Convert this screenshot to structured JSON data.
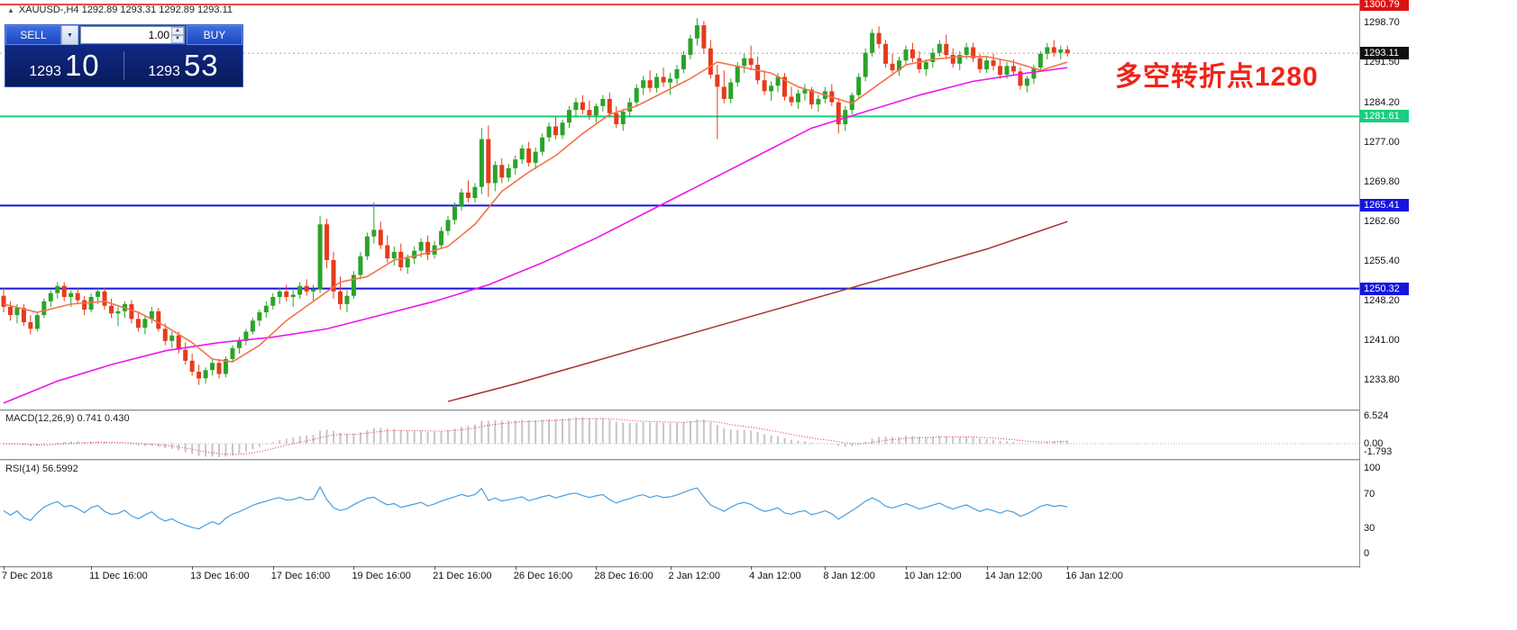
{
  "header": {
    "symbol_line": "XAUUSD-,H4   1292.89 1293.31 1292.89 1293.11"
  },
  "icons": {
    "symbol_marker": "▲",
    "dropdown_arrow": "▼",
    "spinner_up": "▲",
    "spinner_down": "▼"
  },
  "trade_panel": {
    "sell_label": "SELL",
    "buy_label": "BUY",
    "volume": "1.00",
    "bid_big": "1293",
    "bid_pips": "10",
    "ask_big": "1293",
    "ask_pips": "53"
  },
  "annotation": {
    "text": "多空转折点1280",
    "color": "#f02318"
  },
  "indicators": {
    "macd_label": "MACD(12,26,9) 0.741 0.430",
    "rsi_label": "RSI(14) 56.5992"
  },
  "axes": {
    "price_labels": [
      "1298.70",
      "1291.50",
      "1284.20",
      "1277.00",
      "1269.80",
      "1262.60",
      "1255.40",
      "1248.20",
      "1241.00",
      "1233.80"
    ],
    "macd_labels": [
      "6.524",
      "0.00",
      "-1.793"
    ],
    "rsi_labels": [
      "100",
      "70",
      "30",
      "0"
    ],
    "time_labels": [
      {
        "i": 0,
        "label": "7 Dec 2018"
      },
      {
        "i": 13,
        "label": "11 Dec 16:00"
      },
      {
        "i": 28,
        "label": "13 Dec 16:00"
      },
      {
        "i": 40,
        "label": "17 Dec 16:00"
      },
      {
        "i": 52,
        "label": "19 Dec 16:00"
      },
      {
        "i": 64,
        "label": "21 Dec 16:00"
      },
      {
        "i": 76,
        "label": "26 Dec 16:00"
      },
      {
        "i": 88,
        "label": "28 Dec 16:00"
      },
      {
        "i": 99,
        "label": "2 Jan 12:00"
      },
      {
        "i": 111,
        "label": "4 Jan 12:00"
      },
      {
        "i": 122,
        "label": "8 Jan 12:00"
      },
      {
        "i": 134,
        "label": "10 Jan 12:00"
      },
      {
        "i": 146,
        "label": "14 Jan 12:00"
      },
      {
        "i": 158,
        "label": "16 Jan 12:00"
      }
    ]
  },
  "levels": [
    {
      "price": 1300.79,
      "label": "1300.79",
      "color": "#dd1111",
      "width": 1.5,
      "pin_top": true
    },
    {
      "price": 1281.61,
      "label": "1281.61",
      "color": "#17cf7e",
      "width": 2,
      "pin_top": false
    },
    {
      "price": 1265.41,
      "label": "1265.41",
      "color": "#1515dd",
      "width": 2,
      "pin_top": false
    },
    {
      "price": 1250.32,
      "label": "1250.32",
      "color": "#1515dd",
      "width": 2,
      "pin_top": false
    }
  ],
  "current_price": {
    "value": "1293.11",
    "price": 1293.11,
    "badge_color": "#101010"
  },
  "colors": {
    "candle_up": "#2aa32a",
    "candle_down": "#e53b1c",
    "ma_fast": "#f4734a",
    "ma_mid": "#ee16ee",
    "ma_slow": "#a8312a",
    "macd_hist": "#c6c6c6",
    "macd_signal": "#e03030",
    "rsi_line": "#4a9ede"
  },
  "chart_data": {
    "type": "candlestick",
    "symbol": "XAUUSD-",
    "timeframe": "H4",
    "ohlc_current": {
      "open": 1292.89,
      "high": 1293.31,
      "low": 1292.89,
      "close": 1293.11
    },
    "ylim": [
      1229,
      1302
    ],
    "candles": [
      [
        1249.0,
        1250.5,
        1246.0,
        1247.0
      ],
      [
        1247.0,
        1248.0,
        1244.5,
        1245.5
      ],
      [
        1245.5,
        1247.5,
        1244.0,
        1246.8
      ],
      [
        1246.8,
        1247.5,
        1243.5,
        1244.2
      ],
      [
        1244.2,
        1245.5,
        1242.0,
        1243.0
      ],
      [
        1243.0,
        1246.0,
        1242.5,
        1245.5
      ],
      [
        1245.5,
        1248.5,
        1245.0,
        1248.0
      ],
      [
        1248.0,
        1250.0,
        1247.0,
        1249.5
      ],
      [
        1249.5,
        1251.5,
        1248.5,
        1250.8
      ],
      [
        1250.8,
        1251.5,
        1248.0,
        1248.8
      ],
      [
        1248.8,
        1250.0,
        1247.0,
        1249.5
      ],
      [
        1249.5,
        1250.5,
        1247.5,
        1248.2
      ],
      [
        1248.2,
        1249.0,
        1245.5,
        1246.5
      ],
      [
        1246.5,
        1249.5,
        1246.0,
        1248.8
      ],
      [
        1248.8,
        1250.5,
        1247.5,
        1249.8
      ],
      [
        1249.8,
        1250.5,
        1246.5,
        1247.2
      ],
      [
        1247.2,
        1248.5,
        1245.0,
        1245.8
      ],
      [
        1245.8,
        1247.0,
        1243.5,
        1246.2
      ],
      [
        1246.2,
        1248.0,
        1245.0,
        1247.5
      ],
      [
        1247.5,
        1248.2,
        1244.0,
        1244.8
      ],
      [
        1244.8,
        1246.0,
        1242.5,
        1243.2
      ],
      [
        1243.2,
        1245.5,
        1242.0,
        1244.8
      ],
      [
        1244.8,
        1247.0,
        1244.0,
        1246.2
      ],
      [
        1246.2,
        1246.8,
        1242.5,
        1243.0
      ],
      [
        1243.0,
        1244.0,
        1240.0,
        1240.8
      ],
      [
        1240.8,
        1242.5,
        1239.5,
        1241.8
      ],
      [
        1241.8,
        1242.5,
        1238.5,
        1239.2
      ],
      [
        1239.2,
        1240.5,
        1236.5,
        1237.2
      ],
      [
        1237.2,
        1238.5,
        1234.5,
        1235.2
      ],
      [
        1235.2,
        1236.5,
        1232.8,
        1234.0
      ],
      [
        1234.0,
        1236.0,
        1233.0,
        1235.5
      ],
      [
        1235.5,
        1237.5,
        1234.5,
        1236.8
      ],
      [
        1236.8,
        1237.5,
        1234.0,
        1234.8
      ],
      [
        1234.8,
        1238.0,
        1234.2,
        1237.5
      ],
      [
        1237.5,
        1240.0,
        1237.0,
        1239.5
      ],
      [
        1239.5,
        1241.5,
        1238.5,
        1240.8
      ],
      [
        1240.8,
        1243.0,
        1240.0,
        1242.5
      ],
      [
        1242.5,
        1245.0,
        1242.0,
        1244.5
      ],
      [
        1244.5,
        1246.5,
        1243.5,
        1246.0
      ],
      [
        1246.0,
        1248.0,
        1245.0,
        1247.2
      ],
      [
        1247.2,
        1249.5,
        1246.5,
        1248.8
      ],
      [
        1248.8,
        1250.5,
        1247.5,
        1249.8
      ],
      [
        1249.8,
        1251.0,
        1248.0,
        1248.8
      ],
      [
        1248.8,
        1250.0,
        1247.0,
        1249.2
      ],
      [
        1249.2,
        1251.5,
        1248.5,
        1250.8
      ],
      [
        1250.8,
        1252.0,
        1249.0,
        1249.8
      ],
      [
        1249.8,
        1251.0,
        1248.0,
        1250.2
      ],
      [
        1250.2,
        1263.5,
        1249.5,
        1262.0
      ],
      [
        1262.0,
        1263.0,
        1254.0,
        1255.5
      ],
      [
        1255.5,
        1257.0,
        1248.5,
        1249.8
      ],
      [
        1249.8,
        1252.5,
        1246.5,
        1247.5
      ],
      [
        1247.5,
        1250.0,
        1246.0,
        1249.0
      ],
      [
        1249.0,
        1253.5,
        1248.5,
        1252.8
      ],
      [
        1252.8,
        1257.0,
        1252.0,
        1256.2
      ],
      [
        1256.2,
        1260.5,
        1255.5,
        1259.8
      ],
      [
        1259.8,
        1266.0,
        1258.5,
        1261.0
      ],
      [
        1261.0,
        1262.5,
        1257.5,
        1258.2
      ],
      [
        1258.2,
        1260.0,
        1255.0,
        1255.8
      ],
      [
        1255.8,
        1258.0,
        1254.5,
        1257.0
      ],
      [
        1257.0,
        1258.5,
        1253.5,
        1254.2
      ],
      [
        1254.2,
        1256.5,
        1253.0,
        1255.8
      ],
      [
        1255.8,
        1258.0,
        1254.8,
        1257.2
      ],
      [
        1257.2,
        1259.5,
        1256.0,
        1258.8
      ],
      [
        1258.8,
        1260.0,
        1255.5,
        1256.5
      ],
      [
        1256.5,
        1259.0,
        1255.8,
        1258.2
      ],
      [
        1258.2,
        1261.5,
        1257.5,
        1260.8
      ],
      [
        1260.8,
        1263.5,
        1260.0,
        1262.8
      ],
      [
        1262.8,
        1266.0,
        1262.0,
        1265.2
      ],
      [
        1265.2,
        1268.5,
        1264.5,
        1267.8
      ],
      [
        1267.8,
        1270.0,
        1266.0,
        1266.8
      ],
      [
        1266.8,
        1269.5,
        1266.0,
        1268.8
      ],
      [
        1268.8,
        1279.5,
        1267.5,
        1277.5
      ],
      [
        1277.5,
        1280.0,
        1267.0,
        1269.5
      ],
      [
        1269.5,
        1273.5,
        1268.0,
        1272.8
      ],
      [
        1272.8,
        1274.0,
        1269.5,
        1270.5
      ],
      [
        1270.5,
        1273.0,
        1269.8,
        1272.2
      ],
      [
        1272.2,
        1274.5,
        1271.0,
        1273.8
      ],
      [
        1273.8,
        1276.5,
        1273.0,
        1275.8
      ],
      [
        1275.8,
        1277.0,
        1272.5,
        1273.2
      ],
      [
        1273.2,
        1276.0,
        1272.0,
        1275.2
      ],
      [
        1275.2,
        1278.5,
        1274.5,
        1277.8
      ],
      [
        1277.8,
        1280.5,
        1277.0,
        1279.8
      ],
      [
        1279.8,
        1281.5,
        1277.5,
        1278.2
      ],
      [
        1278.2,
        1281.0,
        1277.5,
        1280.5
      ],
      [
        1280.5,
        1283.5,
        1279.5,
        1282.8
      ],
      [
        1282.8,
        1285.0,
        1281.5,
        1284.2
      ],
      [
        1284.2,
        1285.5,
        1282.0,
        1282.8
      ],
      [
        1282.8,
        1284.5,
        1281.0,
        1281.8
      ],
      [
        1281.8,
        1284.0,
        1280.5,
        1283.5
      ],
      [
        1283.5,
        1285.5,
        1282.5,
        1284.8
      ],
      [
        1284.8,
        1286.0,
        1281.5,
        1282.2
      ],
      [
        1282.2,
        1283.5,
        1279.5,
        1280.2
      ],
      [
        1280.2,
        1283.0,
        1279.0,
        1282.5
      ],
      [
        1282.5,
        1285.0,
        1281.5,
        1284.2
      ],
      [
        1284.2,
        1287.5,
        1283.5,
        1286.8
      ],
      [
        1286.8,
        1289.0,
        1285.5,
        1288.2
      ],
      [
        1288.2,
        1290.0,
        1286.0,
        1286.8
      ],
      [
        1286.8,
        1289.5,
        1286.0,
        1288.8
      ],
      [
        1288.8,
        1290.5,
        1287.0,
        1287.8
      ],
      [
        1287.8,
        1289.5,
        1285.5,
        1288.5
      ],
      [
        1288.5,
        1291.0,
        1287.5,
        1290.2
      ],
      [
        1290.2,
        1293.5,
        1289.5,
        1292.8
      ],
      [
        1292.8,
        1296.5,
        1292.0,
        1295.8
      ],
      [
        1295.8,
        1299.5,
        1294.5,
        1298.2
      ],
      [
        1298.2,
        1299.0,
        1293.0,
        1294.0
      ],
      [
        1294.0,
        1295.5,
        1288.5,
        1289.2
      ],
      [
        1289.2,
        1291.0,
        1277.5,
        1287.0
      ],
      [
        1287.0,
        1290.0,
        1284.0,
        1284.8
      ],
      [
        1284.8,
        1288.5,
        1284.0,
        1287.8
      ],
      [
        1287.8,
        1291.5,
        1287.0,
        1290.8
      ],
      [
        1290.8,
        1293.0,
        1289.5,
        1292.2
      ],
      [
        1292.2,
        1294.5,
        1290.0,
        1291.0
      ],
      [
        1291.0,
        1292.5,
        1287.5,
        1288.2
      ],
      [
        1288.2,
        1290.0,
        1285.5,
        1286.2
      ],
      [
        1286.2,
        1288.0,
        1284.5,
        1287.2
      ],
      [
        1287.2,
        1289.5,
        1286.0,
        1288.8
      ],
      [
        1288.8,
        1289.5,
        1284.5,
        1285.2
      ],
      [
        1285.2,
        1287.0,
        1283.5,
        1284.2
      ],
      [
        1284.2,
        1286.5,
        1283.0,
        1285.8
      ],
      [
        1285.8,
        1287.5,
        1284.5,
        1286.5
      ],
      [
        1286.5,
        1287.0,
        1283.0,
        1283.8
      ],
      [
        1283.8,
        1285.5,
        1282.5,
        1284.8
      ],
      [
        1284.8,
        1287.0,
        1284.0,
        1286.2
      ],
      [
        1286.2,
        1287.5,
        1283.5,
        1284.2
      ],
      [
        1284.2,
        1285.0,
        1278.5,
        1280.2
      ],
      [
        1280.2,
        1283.5,
        1279.0,
        1282.8
      ],
      [
        1282.8,
        1286.0,
        1282.0,
        1285.5
      ],
      [
        1285.5,
        1289.5,
        1285.0,
        1288.8
      ],
      [
        1288.8,
        1294.0,
        1288.0,
        1293.2
      ],
      [
        1293.2,
        1297.5,
        1292.5,
        1296.8
      ],
      [
        1296.8,
        1298.0,
        1294.0,
        1294.8
      ],
      [
        1294.8,
        1295.5,
        1290.5,
        1291.2
      ],
      [
        1291.2,
        1293.0,
        1289.5,
        1290.0
      ],
      [
        1290.0,
        1292.5,
        1289.0,
        1291.8
      ],
      [
        1291.8,
        1294.5,
        1291.0,
        1293.8
      ],
      [
        1293.8,
        1295.0,
        1291.5,
        1292.2
      ],
      [
        1292.2,
        1293.5,
        1289.5,
        1290.2
      ],
      [
        1290.2,
        1292.0,
        1289.0,
        1291.5
      ],
      [
        1291.5,
        1294.0,
        1290.5,
        1293.2
      ],
      [
        1293.2,
        1295.5,
        1292.5,
        1294.8
      ],
      [
        1294.8,
        1296.5,
        1292.0,
        1292.8
      ],
      [
        1292.8,
        1294.0,
        1290.5,
        1291.2
      ],
      [
        1291.2,
        1293.5,
        1290.0,
        1292.8
      ],
      [
        1292.8,
        1295.0,
        1292.0,
        1294.2
      ],
      [
        1294.2,
        1295.0,
        1291.5,
        1292.2
      ],
      [
        1292.2,
        1293.0,
        1289.5,
        1290.2
      ],
      [
        1290.2,
        1292.5,
        1289.5,
        1291.8
      ],
      [
        1291.8,
        1293.0,
        1290.0,
        1290.8
      ],
      [
        1290.8,
        1292.0,
        1288.5,
        1289.2
      ],
      [
        1289.2,
        1291.5,
        1288.5,
        1290.8
      ],
      [
        1290.8,
        1292.0,
        1289.0,
        1289.8
      ],
      [
        1289.8,
        1290.5,
        1286.5,
        1287.2
      ],
      [
        1287.2,
        1289.0,
        1286.0,
        1288.5
      ],
      [
        1288.5,
        1291.0,
        1287.5,
        1290.5
      ],
      [
        1290.5,
        1293.5,
        1290.0,
        1293.0
      ],
      [
        1293.0,
        1295.0,
        1292.0,
        1294.2
      ],
      [
        1294.2,
        1295.5,
        1292.5,
        1293.2
      ],
      [
        1293.2,
        1294.5,
        1292.0,
        1293.8
      ],
      [
        1293.8,
        1294.5,
        1292.5,
        1293.1
      ]
    ],
    "ma_fast_points": [
      [
        0,
        1247.5
      ],
      [
        5,
        1246.0
      ],
      [
        10,
        1247.5
      ],
      [
        15,
        1248.0
      ],
      [
        20,
        1246.0
      ],
      [
        24,
        1243.5
      ],
      [
        28,
        1240.5
      ],
      [
        31,
        1237.5
      ],
      [
        34,
        1237.0
      ],
      [
        38,
        1240.0
      ],
      [
        42,
        1244.5
      ],
      [
        46,
        1248.0
      ],
      [
        50,
        1251.5
      ],
      [
        54,
        1252.5
      ],
      [
        58,
        1255.5
      ],
      [
        62,
        1256.5
      ],
      [
        66,
        1258.0
      ],
      [
        70,
        1262.0
      ],
      [
        74,
        1268.0
      ],
      [
        78,
        1271.5
      ],
      [
        82,
        1274.5
      ],
      [
        86,
        1278.5
      ],
      [
        90,
        1282.0
      ],
      [
        94,
        1283.5
      ],
      [
        98,
        1286.0
      ],
      [
        102,
        1288.5
      ],
      [
        106,
        1291.5
      ],
      [
        110,
        1290.5
      ],
      [
        114,
        1289.5
      ],
      [
        118,
        1287.0
      ],
      [
        122,
        1285.5
      ],
      [
        126,
        1284.0
      ],
      [
        130,
        1287.5
      ],
      [
        134,
        1291.0
      ],
      [
        138,
        1292.0
      ],
      [
        142,
        1292.5
      ],
      [
        146,
        1292.5
      ],
      [
        150,
        1291.5
      ],
      [
        154,
        1290.0
      ],
      [
        158,
        1291.5
      ]
    ],
    "ma_mid_points": [
      [
        0,
        1229.5
      ],
      [
        8,
        1233.5
      ],
      [
        16,
        1236.5
      ],
      [
        24,
        1239.0
      ],
      [
        32,
        1240.5
      ],
      [
        40,
        1241.5
      ],
      [
        48,
        1243.0
      ],
      [
        56,
        1245.5
      ],
      [
        64,
        1248.0
      ],
      [
        72,
        1251.0
      ],
      [
        80,
        1255.0
      ],
      [
        88,
        1259.5
      ],
      [
        96,
        1264.5
      ],
      [
        104,
        1269.5
      ],
      [
        112,
        1274.5
      ],
      [
        120,
        1279.5
      ],
      [
        128,
        1282.5
      ],
      [
        136,
        1285.5
      ],
      [
        144,
        1288.0
      ],
      [
        152,
        1289.5
      ],
      [
        158,
        1290.5
      ]
    ],
    "ma_slow_points": [
      [
        66,
        1229.8
      ],
      [
        76,
        1233.0
      ],
      [
        86,
        1236.5
      ],
      [
        96,
        1240.0
      ],
      [
        106,
        1243.5
      ],
      [
        116,
        1247.0
      ],
      [
        126,
        1250.5
      ],
      [
        136,
        1254.0
      ],
      [
        146,
        1257.5
      ],
      [
        152,
        1260.0
      ],
      [
        158,
        1262.5
      ]
    ],
    "macd": {
      "fast": 12,
      "slow": 26,
      "signal": 9,
      "value": 0.741,
      "signal_value": 0.43,
      "scale_max": 6.524,
      "scale_min": -1.793
    },
    "rsi": {
      "period": 14,
      "value": 56.5992,
      "levels": [
        100,
        70,
        30,
        0
      ]
    }
  }
}
